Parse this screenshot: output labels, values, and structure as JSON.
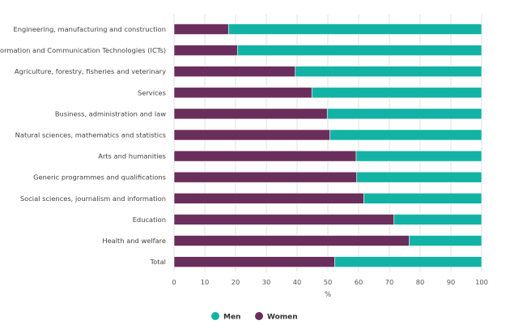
{
  "chart_data": {
    "type": "bar",
    "orientation": "horizontal",
    "stacked": true,
    "categories": [
      "Engineering, manufacturing and construction",
      "Information and Communication Technologies (ICTs)",
      "Agriculture, forestry, fisheries and veterinary",
      "Services",
      "Business, administration and law",
      "Natural sciences, mathematics and statistics",
      "Arts and humanities",
      "Generic programmes and qualifications",
      "Social sciences, journalism and information",
      "Education",
      "Health and welfare",
      "Total"
    ],
    "series": [
      {
        "name": "Women",
        "color": "#6a2e5c",
        "values": [
          17.7,
          20.6,
          39.4,
          44.8,
          49.8,
          50.7,
          59.2,
          59.4,
          61.7,
          71.5,
          76.4,
          52.2
        ]
      },
      {
        "name": "Men",
        "color": "#12b3a4",
        "values": [
          82.3,
          79.4,
          60.6,
          55.2,
          50.2,
          49.3,
          40.8,
          40.6,
          38.3,
          28.5,
          23.6,
          47.8
        ]
      }
    ],
    "xlabel": "%",
    "xlim": [
      0,
      100
    ],
    "xticks": [
      "0",
      "10",
      "20",
      "30",
      "40",
      "50",
      "60",
      "70",
      "80",
      "90",
      "100"
    ],
    "grid": true,
    "legend": [
      {
        "name": "Men",
        "color": "#12b3a4"
      },
      {
        "name": "Women",
        "color": "#6a2e5c"
      }
    ],
    "legend_position": "bottom-center"
  }
}
